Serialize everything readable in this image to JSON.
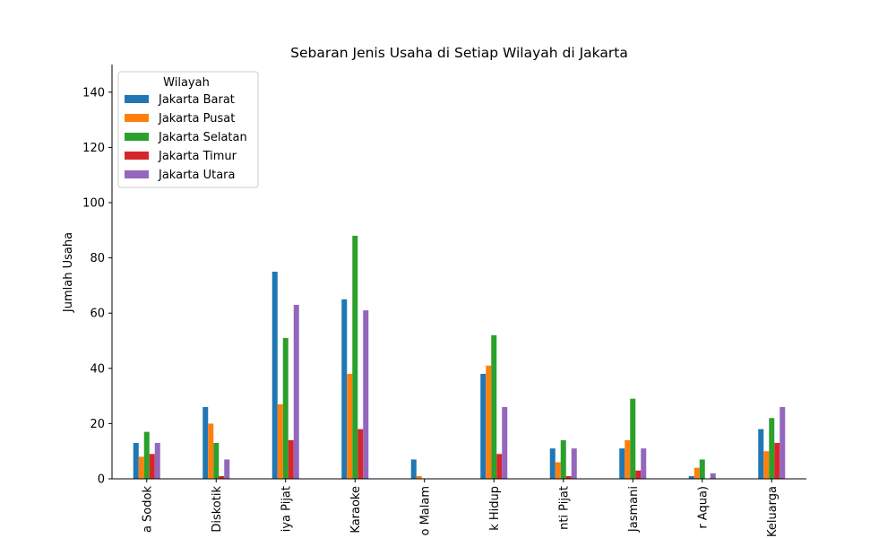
{
  "chart_data": {
    "type": "bar",
    "title": "Sebaran Jenis Usaha di Setiap Wilayah di Jakarta",
    "xlabel": "",
    "ylabel": "Jumlah Usaha",
    "ylim": [
      0,
      150
    ],
    "yticks": [
      0,
      20,
      40,
      60,
      80,
      100,
      120,
      140
    ],
    "categories": [
      "a Sodok",
      "Diskotik",
      "iya Pijat",
      "Karaoke",
      "o Malam",
      "k Hidup",
      "nti Pijat",
      "Jasmani",
      "r Aqua)",
      "Keluarga"
    ],
    "legend": {
      "title": "Wilayah",
      "position": "top-left"
    },
    "grid": false,
    "series": [
      {
        "name": "Jakarta Barat",
        "color": "#1f77b4",
        "values": [
          13,
          26,
          75,
          65,
          7,
          38,
          11,
          11,
          1,
          18
        ]
      },
      {
        "name": "Jakarta Pusat",
        "color": "#ff7f0e",
        "values": [
          8,
          20,
          27,
          38,
          1,
          41,
          6,
          14,
          4,
          10
        ]
      },
      {
        "name": "Jakarta Selatan",
        "color": "#2ca02c",
        "values": [
          17,
          13,
          51,
          88,
          0,
          52,
          14,
          29,
          7,
          22
        ]
      },
      {
        "name": "Jakarta Timur",
        "color": "#d62728",
        "values": [
          9,
          1,
          14,
          18,
          0,
          9,
          1,
          3,
          0,
          13
        ]
      },
      {
        "name": "Jakarta Utara",
        "color": "#9467bd",
        "values": [
          13,
          7,
          63,
          61,
          0,
          26,
          11,
          11,
          2,
          26
        ]
      }
    ]
  }
}
